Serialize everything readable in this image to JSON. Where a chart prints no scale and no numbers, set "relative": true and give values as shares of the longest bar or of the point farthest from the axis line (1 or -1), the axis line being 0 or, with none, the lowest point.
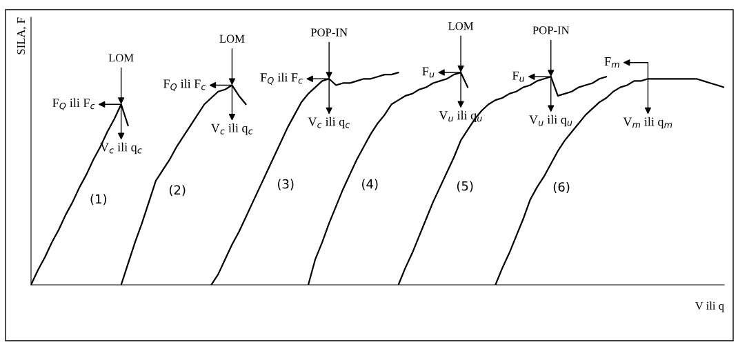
{
  "chart_data": {
    "type": "line",
    "relative": true,
    "ylabel": "SILA, F",
    "xlabel": "V ili q",
    "marker": "none",
    "line_style": "solid",
    "categories": [
      null,
      null,
      null,
      null,
      null,
      null,
      null,
      null,
      null,
      null,
      null,
      null,
      null,
      null,
      null,
      null,
      null,
      null,
      null,
      null,
      null,
      null,
      null,
      null,
      null,
      null,
      null,
      null,
      null,
      null,
      null,
      null,
      null,
      null,
      null,
      null,
      null,
      null,
      null,
      null,
      null,
      null,
      null,
      null,
      null,
      null,
      null,
      null,
      null,
      null,
      null,
      null,
      null,
      null,
      null,
      null,
      null,
      null,
      null,
      null,
      null,
      null,
      null,
      null,
      null,
      null,
      null,
      null,
      null,
      null,
      null,
      null,
      null,
      null,
      null,
      null,
      null,
      null,
      null,
      null,
      null,
      null,
      null,
      null,
      null,
      null,
      null,
      null,
      null,
      null,
      null,
      null,
      null,
      null,
      null,
      null,
      null,
      null,
      null,
      null,
      null
    ],
    "series": [
      {
        "name": "(1)",
        "color": "#000000",
        "values": [
          0,
          0.07,
          0.13,
          0.2,
          0.26,
          0.33,
          0.39,
          0.46,
          0.52,
          0.59,
          0.65,
          0.72,
          0.78,
          0.85,
          0.75,
          null,
          null,
          null,
          null,
          null,
          null,
          null,
          null,
          null,
          null,
          null,
          null,
          null,
          null,
          null,
          null,
          null,
          null,
          null,
          null,
          null,
          null,
          null,
          null,
          null,
          null,
          null,
          null,
          null,
          null,
          null,
          null,
          null,
          null,
          null,
          null,
          null,
          null,
          null,
          null,
          null,
          null,
          null,
          null,
          null,
          null,
          null,
          null,
          null,
          null,
          null,
          null,
          null,
          null,
          null,
          null,
          null,
          null,
          null,
          null,
          null,
          null,
          null,
          null,
          null,
          null,
          null,
          null,
          null,
          null,
          null,
          null,
          null,
          null,
          null,
          null,
          null,
          null,
          null,
          null,
          null,
          null,
          null,
          null,
          null,
          null
        ]
      },
      {
        "name": "(2)",
        "color": "#000000",
        "values": [
          null,
          null,
          null,
          null,
          null,
          null,
          null,
          null,
          null,
          null,
          null,
          null,
          null,
          0,
          0.1,
          0.2,
          0.29,
          0.39,
          0.49,
          0.54,
          0.59,
          0.65,
          0.7,
          0.75,
          0.8,
          0.85,
          0.88,
          0.91,
          0.92,
          0.94,
          0.89,
          0.85,
          null,
          null,
          null,
          null,
          null,
          null,
          null,
          null,
          null,
          null,
          null,
          null,
          null,
          null,
          null,
          null,
          null,
          null,
          null,
          null,
          null,
          null,
          null,
          null,
          null,
          null,
          null,
          null,
          null,
          null,
          null,
          null,
          null,
          null,
          null,
          null,
          null,
          null,
          null,
          null,
          null,
          null,
          null,
          null,
          null,
          null,
          null,
          null,
          null,
          null,
          null,
          null,
          null,
          null,
          null,
          null,
          null,
          null,
          null,
          null,
          null,
          null,
          null,
          null,
          null,
          null,
          null,
          null,
          null
        ]
      },
      {
        "name": "(3)",
        "color": "#000000",
        "values": [
          null,
          null,
          null,
          null,
          null,
          null,
          null,
          null,
          null,
          null,
          null,
          null,
          null,
          null,
          null,
          null,
          null,
          null,
          null,
          null,
          null,
          null,
          null,
          null,
          null,
          null,
          0,
          0.05,
          0.12,
          0.19,
          0.25,
          0.32,
          0.39,
          0.46,
          0.53,
          0.6,
          0.67,
          0.74,
          0.8,
          0.86,
          0.9,
          0.93,
          0.96,
          0.97,
          0.94,
          0.95,
          0.95,
          0.96,
          0.97,
          0.97,
          0.98,
          0.99,
          0.99,
          1.0,
          null,
          null,
          null,
          null,
          null,
          null,
          null,
          null,
          null,
          null,
          null,
          null,
          null,
          null,
          null,
          null,
          null,
          null,
          null,
          null,
          null,
          null,
          null,
          null,
          null,
          null,
          null,
          null,
          null,
          null,
          null,
          null,
          null,
          null,
          null,
          null,
          null,
          null,
          null,
          null,
          null,
          null,
          null,
          null,
          null,
          null,
          null
        ]
      },
      {
        "name": "(4)",
        "color": "#000000",
        "values": [
          null,
          null,
          null,
          null,
          null,
          null,
          null,
          null,
          null,
          null,
          null,
          null,
          null,
          null,
          null,
          null,
          null,
          null,
          null,
          null,
          null,
          null,
          null,
          null,
          null,
          null,
          null,
          null,
          null,
          null,
          null,
          null,
          null,
          null,
          null,
          null,
          null,
          null,
          null,
          null,
          0,
          0.12,
          0.2,
          0.29,
          0.37,
          0.45,
          0.52,
          0.59,
          0.65,
          0.71,
          0.76,
          0.8,
          0.85,
          0.87,
          0.89,
          0.9,
          0.92,
          0.93,
          0.95,
          0.96,
          0.97,
          0.99,
          1.0,
          0.93,
          null,
          null,
          null,
          null,
          null,
          null,
          null,
          null,
          null,
          null,
          null,
          null,
          null,
          null,
          null,
          null,
          null,
          null,
          null,
          null,
          null,
          null,
          null,
          null,
          null,
          null,
          null,
          null,
          null,
          null,
          null,
          null,
          null,
          null,
          null,
          null,
          null
        ]
      },
      {
        "name": "(5)",
        "color": "#000000",
        "values": [
          null,
          null,
          null,
          null,
          null,
          null,
          null,
          null,
          null,
          null,
          null,
          null,
          null,
          null,
          null,
          null,
          null,
          null,
          null,
          null,
          null,
          null,
          null,
          null,
          null,
          null,
          null,
          null,
          null,
          null,
          null,
          null,
          null,
          null,
          null,
          null,
          null,
          null,
          null,
          null,
          null,
          null,
          null,
          null,
          null,
          null,
          null,
          null,
          null,
          null,
          null,
          null,
          null,
          0,
          0.08,
          0.15,
          0.23,
          0.31,
          0.39,
          0.46,
          0.53,
          0.6,
          0.68,
          0.73,
          0.78,
          0.82,
          0.85,
          0.87,
          0.88,
          0.9,
          0.91,
          0.93,
          0.94,
          0.96,
          0.97,
          0.98,
          0.89,
          0.9,
          0.91,
          0.93,
          0.94,
          0.95,
          0.97,
          0.98,
          null,
          null,
          null,
          null,
          null,
          null,
          null,
          null,
          null,
          null,
          null,
          null,
          null,
          null,
          null,
          null,
          null
        ]
      },
      {
        "name": "(6)",
        "color": "#000000",
        "values": [
          null,
          null,
          null,
          null,
          null,
          null,
          null,
          null,
          null,
          null,
          null,
          null,
          null,
          null,
          null,
          null,
          null,
          null,
          null,
          null,
          null,
          null,
          null,
          null,
          null,
          null,
          null,
          null,
          null,
          null,
          null,
          null,
          null,
          null,
          null,
          null,
          null,
          null,
          null,
          null,
          null,
          null,
          null,
          null,
          null,
          null,
          null,
          null,
          null,
          null,
          null,
          null,
          null,
          null,
          null,
          null,
          null,
          null,
          null,
          null,
          null,
          null,
          null,
          null,
          null,
          null,
          null,
          0,
          0.08,
          0.15,
          0.23,
          0.31,
          0.4,
          0.46,
          0.51,
          0.57,
          0.63,
          0.68,
          0.72,
          0.76,
          0.8,
          0.83,
          0.86,
          0.88,
          0.91,
          0.93,
          0.94,
          0.96,
          0.96,
          0.97,
          0.97,
          0.97,
          0.97,
          0.97,
          0.97,
          0.97,
          0.97,
          0.96,
          0.95,
          0.94,
          0.93
        ]
      }
    ],
    "annotations": [
      "LOM",
      "F$_{Q}$ ili F$_{c}$",
      "V$_{c}$ ili q$_{c}$",
      "LOM",
      "F$_{Q}$ ili F$_{c}$",
      "V$_{c}$ ili q$_{c}$",
      "POP-IN",
      "F$_{Q}$ ili F$_{c}$",
      "V$_{c}$ ili q$_{c}$",
      "LOM",
      "F$_{u}$",
      "V$_{u}$ ili q$_{u}$",
      "POP-IN",
      "F$_{u}$",
      "V$_{u}$ ili q$_{u}$",
      "F$_{m}$",
      "V$_{m}$ ili q$_{m}$"
    ]
  }
}
